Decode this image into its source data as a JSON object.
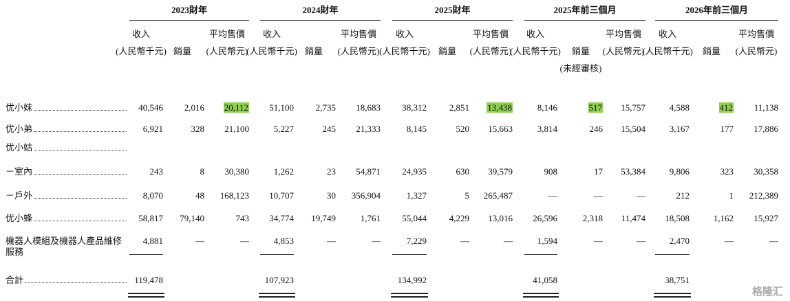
{
  "table": {
    "groups": [
      "2023財年",
      "2024財年",
      "2025財年",
      "2025年前三個月",
      "2026年前三個月"
    ],
    "subheaders": [
      [
        [
          "收入",
          "(人民幣千元)"
        ],
        [
          "銷量"
        ],
        [
          "平均售價",
          "(人民幣元)"
        ]
      ],
      [
        [
          "收入",
          "(人民幣千元)"
        ],
        [
          "銷量"
        ],
        [
          "平均售價",
          "(人民幣元)"
        ]
      ],
      [
        [
          "收入",
          "(人民幣千元)"
        ],
        [
          "銷量"
        ],
        [
          "平均售價",
          "(人民幣元)"
        ]
      ],
      [
        [
          "收入",
          "(人民幣千元)"
        ],
        [
          "銷量",
          "(未經審核)"
        ],
        [
          "平均售價",
          "(人民幣元)"
        ]
      ],
      [
        [
          "收入",
          "(人民幣千元)"
        ],
        [
          "銷量"
        ],
        [
          "平均售價",
          "(人民幣元)"
        ]
      ]
    ],
    "rows": [
      {
        "label": "优小妹",
        "cells": [
          "40,546",
          "2,016",
          {
            "text": "20,112",
            "highlight": "#8fd14f"
          },
          "51,100",
          "2,735",
          "18,683",
          "38,312",
          "2,851",
          {
            "text": "13,438",
            "highlight": "#8fd14f"
          },
          "8,146",
          {
            "text": "517",
            "highlight": "#8fd14f"
          },
          "15,757",
          "4,588",
          {
            "text": "412",
            "highlight": "#8fd14f"
          },
          "11,138"
        ]
      },
      {
        "label": "优小弟",
        "cells": [
          "6,921",
          "328",
          "21,100",
          "5,227",
          "245",
          "21,333",
          "8,145",
          "520",
          "15,663",
          "3,814",
          "246",
          "15,504",
          "3,167",
          "177",
          "17,886"
        ]
      },
      {
        "label": "优小姑"
      },
      {
        "label": "－室內",
        "cells": [
          "243",
          "8",
          "30,380",
          "1,262",
          "23",
          "54,871",
          "24,935",
          "630",
          "39,579",
          "908",
          "17",
          "53,384",
          "9,806",
          "323",
          "30,358"
        ]
      },
      {
        "label": "－戶外",
        "cells": [
          "8,070",
          "48",
          "168,123",
          "10,707",
          "30",
          "356,904",
          "1,327",
          "5",
          "265,487",
          "—",
          "—",
          "—",
          "212",
          "1",
          "212,389"
        ]
      },
      {
        "label": "优小蜂",
        "cells": [
          "58,817",
          "79,140",
          "743",
          "34,774",
          "19,749",
          "1,761",
          "55,044",
          "4,229",
          "13,016",
          "26,596",
          "2,318",
          "11,474",
          "18,508",
          "1,162",
          "15,927"
        ]
      },
      {
        "label": "機器人模組及機器人產品維修服務",
        "cells": [
          "4,881",
          "—",
          "—",
          "4,853",
          "—",
          "—",
          "7,229",
          "—",
          "—",
          "1,594",
          "—",
          "—",
          "2,470",
          "—",
          "—"
        ]
      },
      {
        "label": "合計",
        "cells": [
          "119,478",
          null,
          null,
          "107,923",
          null,
          null,
          "134,992",
          null,
          null,
          "41,058",
          null,
          null,
          "38,751",
          null,
          null
        ]
      }
    ],
    "watermark": "格隆汇"
  }
}
